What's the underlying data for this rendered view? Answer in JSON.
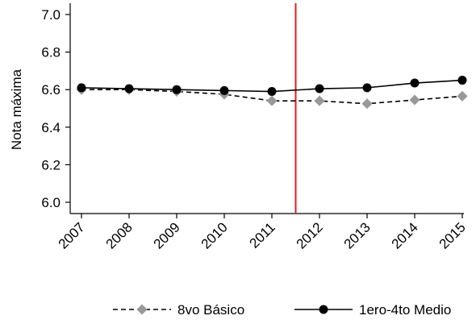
{
  "chart_data": {
    "type": "line",
    "title": "",
    "xlabel": "",
    "ylabel": "Nota máxima",
    "x": [
      "2007",
      "2008",
      "2009",
      "2010",
      "2011",
      "2012",
      "2013",
      "2014",
      "2015"
    ],
    "yticks": [
      "6.0",
      "6.2",
      "6.4",
      "6.6",
      "6.8",
      "7.0"
    ],
    "ylim": [
      5.98,
      7.06
    ],
    "grid": false,
    "legend_position": "bottom",
    "vline": {
      "x_between": [
        "2011",
        "2012"
      ],
      "color": "#e41a1c"
    },
    "series": [
      {
        "name": "8vo Básico",
        "values": [
          6.6,
          6.6,
          6.59,
          6.575,
          6.54,
          6.54,
          6.525,
          6.545,
          6.565
        ],
        "line_style": "dashed",
        "marker": "diamond",
        "color": "#999999",
        "line_color": "#000000"
      },
      {
        "name": "1ero-4to Medio",
        "values": [
          6.61,
          6.605,
          6.6,
          6.595,
          6.59,
          6.605,
          6.61,
          6.635,
          6.65
        ],
        "line_style": "solid",
        "marker": "circle",
        "color": "#000000",
        "line_color": "#000000"
      }
    ]
  }
}
